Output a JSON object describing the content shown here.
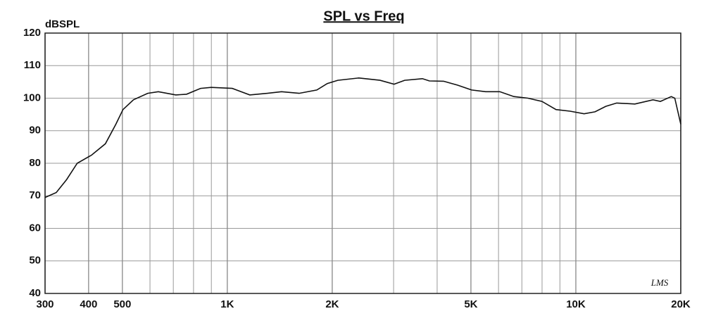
{
  "chart_data": {
    "type": "line",
    "title": "SPL vs Freq",
    "y_label": "dBSPL",
    "annotation": "LMS",
    "log_x": true,
    "grid": true,
    "xlim": [
      300,
      20000
    ],
    "ylim": [
      40,
      120
    ],
    "yticks": [
      40,
      50,
      60,
      70,
      80,
      90,
      100,
      110,
      120
    ],
    "xticks": [
      300,
      400,
      500,
      {
        "value": 1000,
        "label": "1K"
      },
      {
        "value": 2000,
        "label": "2K"
      },
      {
        "value": 5000,
        "label": "5K"
      },
      {
        "value": 10000,
        "label": "10K"
      },
      {
        "value": 20000,
        "label": "20K"
      }
    ],
    "x_minor_ticks": [
      600,
      700,
      800,
      900,
      3000,
      4000,
      6000,
      7000,
      8000,
      9000
    ],
    "series": [
      {
        "color": "#111111",
        "x": [
          300,
          323,
          346,
          371,
          408,
          447,
          479,
          502,
          538,
          591,
          634,
          712,
          764,
          838,
          899,
          1033,
          1160,
          1303,
          1431,
          1607,
          1806,
          1936,
          2075,
          2384,
          2743,
          3010,
          3228,
          3629,
          3800,
          4172,
          4578,
          5024,
          5513,
          6050,
          6640,
          7285,
          7995,
          8773,
          9626,
          10563,
          11349,
          12190,
          13096,
          14770,
          16655,
          17484,
          18783,
          19224,
          20000
        ],
        "values": [
          69.5,
          71,
          75,
          80,
          82.5,
          86,
          92,
          96.5,
          99.5,
          101.5,
          102,
          101,
          101.2,
          103,
          103.3,
          103,
          101,
          101.5,
          102,
          101.5,
          102.5,
          104.5,
          105.5,
          106.2,
          105.5,
          104.3,
          105.5,
          106,
          105.3,
          105.2,
          104,
          102.5,
          102,
          102,
          100.5,
          100,
          99,
          96.5,
          96,
          95.2,
          95.8,
          97.5,
          98.5,
          98.2,
          99.5,
          99,
          100.5,
          100,
          92
        ]
      }
    ]
  }
}
